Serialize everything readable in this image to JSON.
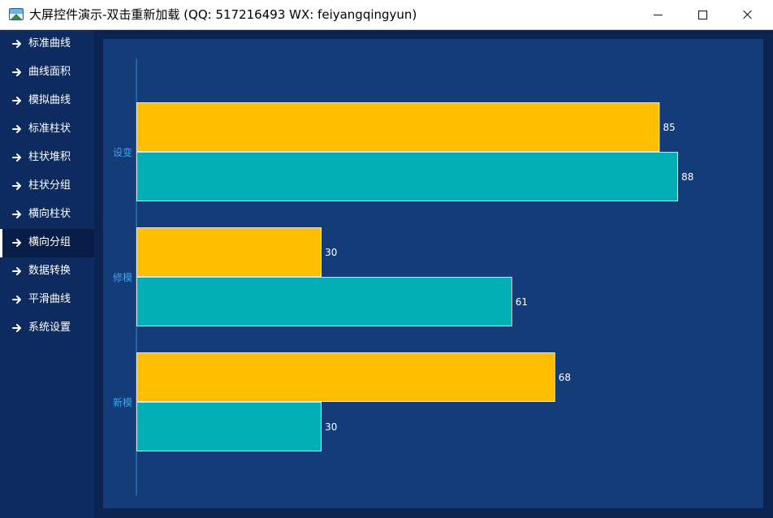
{
  "window": {
    "title": "大屏控件演示-双击重新加载 (QQ: 517216493  WX: feiyangqingyun)"
  },
  "sidebar": {
    "active_index": 7,
    "items": [
      {
        "label": "标准曲线"
      },
      {
        "label": "曲线面积"
      },
      {
        "label": "模拟曲线"
      },
      {
        "label": "标准柱状"
      },
      {
        "label": "柱状堆积"
      },
      {
        "label": "柱状分组"
      },
      {
        "label": "横向柱状"
      },
      {
        "label": "横向分组"
      },
      {
        "label": "数据转换"
      },
      {
        "label": "平滑曲线"
      },
      {
        "label": "系统设置"
      }
    ]
  },
  "colors": {
    "series_a": "#ffbf00",
    "series_b": "#00aeb3",
    "axis": "#2f8fd6",
    "category_label": "#3fa4ea",
    "value_label": "#ffffff"
  },
  "chart_data": {
    "type": "bar",
    "orientation": "horizontal",
    "categories": [
      "设变",
      "修模",
      "新模"
    ],
    "series": [
      {
        "values": [
          85,
          30,
          68
        ]
      },
      {
        "values": [
          88,
          61,
          30
        ]
      }
    ],
    "xlim": [
      0,
      100
    ],
    "grid": false,
    "legend": "none"
  }
}
